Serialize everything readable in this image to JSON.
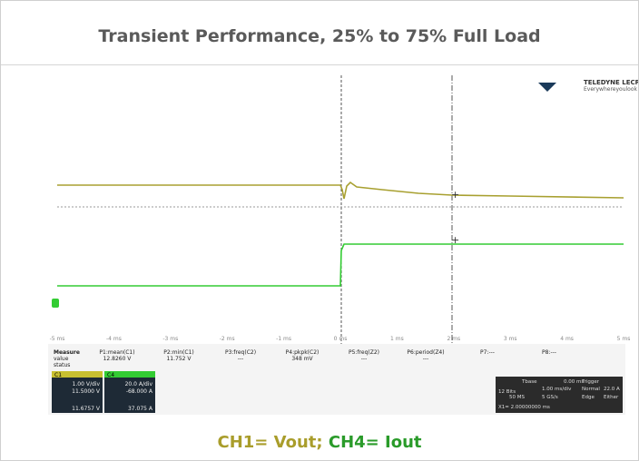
{
  "title": "Transient Performance, 25% to 75% Full Load",
  "caption": {
    "vout": "CH1= Vout;",
    "iout": "CH4= Iout"
  },
  "scope": {
    "brand": "TELEDYNE LECROY",
    "tagline": "Everywhereyoulook",
    "time_labels": [
      "-5 ms",
      "-4 ms",
      "-3 ms",
      "-2 ms",
      "-1 ms",
      "0 ms",
      "1 ms",
      "2 ms",
      "3 ms",
      "4 ms",
      "5 ms"
    ],
    "measure": {
      "header": "Measure",
      "row_value": "value",
      "row_status": "status",
      "params": [
        {
          "name": "P1:mean(C1)",
          "value": "12.8260 V"
        },
        {
          "name": "P2:min(C1)",
          "value": "11.752 V"
        },
        {
          "name": "P3:freq(C2)",
          "value": "---"
        },
        {
          "name": "P4:pkpk(C2)",
          "value": "348 mV"
        },
        {
          "name": "P5:freq(Z2)",
          "value": "---"
        },
        {
          "name": "P6:period(Z4)",
          "value": "---"
        },
        {
          "name": "P7:---",
          "value": ""
        },
        {
          "name": "P8:---",
          "value": ""
        }
      ]
    },
    "channels": [
      {
        "name": "C1",
        "scale": "1.00 V/div",
        "offset": "11.5000 V",
        "cursor": "11.6757 V"
      },
      {
        "name": "C4",
        "scale": "20.0 A/div",
        "offset": "-68.000 A",
        "cursor": "37.075 A"
      }
    ],
    "timebase": {
      "label": "Tbase",
      "delay": "0.00 ms",
      "trigger": "Trigger",
      "tdiv": "1.00 ms/div",
      "mode": "Normal",
      "samples": "50 MS",
      "rate": "5 GS/s",
      "type": "Edge",
      "level": "22.0 A",
      "slope": "Either",
      "bits": "12 Bits",
      "cursor": "X1= 2.00000000 ms"
    }
  }
}
